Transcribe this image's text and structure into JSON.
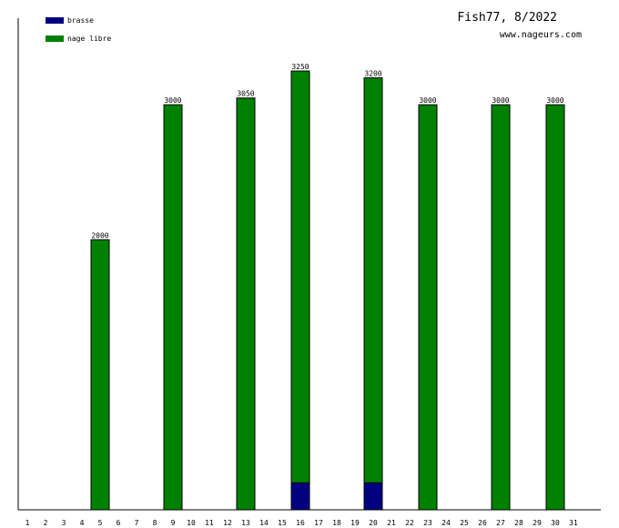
{
  "header": {
    "title": "Fish77, 8/2022",
    "site": "www.nageurs.com"
  },
  "chart_data": {
    "type": "bar",
    "stacked": true,
    "categories": [
      "1",
      "2",
      "3",
      "4",
      "5",
      "6",
      "7",
      "8",
      "9",
      "10",
      "11",
      "12",
      "13",
      "14",
      "15",
      "16",
      "17",
      "18",
      "19",
      "20",
      "21",
      "22",
      "23",
      "24",
      "25",
      "26",
      "27",
      "28",
      "29",
      "30",
      "31"
    ],
    "series": [
      {
        "name": "brasse",
        "color": "#000080",
        "values": [
          0,
          0,
          0,
          0,
          0,
          0,
          0,
          0,
          0,
          0,
          0,
          0,
          0,
          0,
          0,
          200,
          0,
          0,
          0,
          200,
          0,
          0,
          0,
          0,
          0,
          0,
          0,
          0,
          0,
          0,
          0
        ]
      },
      {
        "name": "nage libre",
        "color": "#008000",
        "values": [
          0,
          0,
          0,
          0,
          2000,
          0,
          0,
          0,
          3000,
          0,
          0,
          0,
          3050,
          0,
          0,
          3050,
          0,
          0,
          0,
          3000,
          0,
          0,
          3000,
          0,
          0,
          0,
          3000,
          0,
          0,
          3000,
          0
        ]
      }
    ],
    "totals": [
      "",
      "",
      "",
      "",
      "2000",
      "",
      "",
      "",
      "3000",
      "",
      "",
      "",
      "3050",
      "",
      "",
      "3250",
      "",
      "",
      "",
      "3200",
      "",
      "",
      "3000",
      "",
      "",
      "",
      "3000",
      "",
      "",
      "3000",
      ""
    ],
    "ylim": [
      0,
      3250
    ],
    "legend": "top-left",
    "grid": false
  }
}
